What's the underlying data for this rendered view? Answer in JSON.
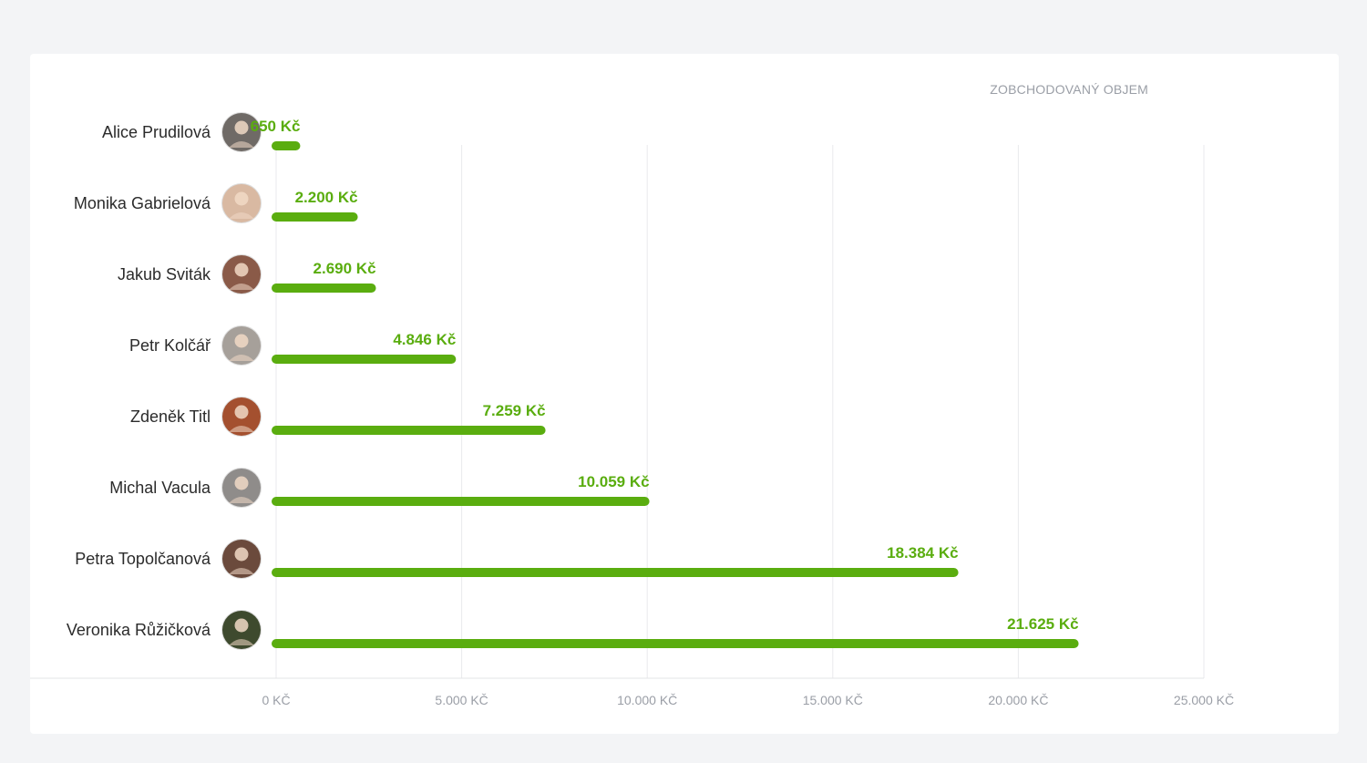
{
  "chart_data": {
    "type": "bar",
    "orientation": "horizontal",
    "series_title": "ZOBCHODOVANÝ OBJEM",
    "categories": [
      "Alice Prudilová",
      "Monika Gabrielová",
      "Jakub Sviták",
      "Petr Kolčář",
      "Zdeněk Titl",
      "Michal Vacula",
      "Petra Topolčanová",
      "Veronika Růžičková"
    ],
    "values": [
      650,
      2200,
      2690,
      4846,
      7259,
      10059,
      18384,
      21625
    ],
    "value_labels": [
      "650 Kč",
      "2.200 Kč",
      "2.690 Kč",
      "4.846 Kč",
      "7.259 Kč",
      "10.059 Kč",
      "18.384 Kč",
      "21.625 Kč"
    ],
    "xlim": [
      0,
      25000
    ],
    "xticks": [
      0,
      5000,
      10000,
      15000,
      20000,
      25000
    ],
    "xtick_labels": [
      "0 KČ",
      "5.000 KČ",
      "10.000 KČ",
      "15.000 KČ",
      "20.000 KČ",
      "25.000 KČ"
    ],
    "avatar_colors": [
      "#6f6a66",
      "#d9b9a2",
      "#8a5a48",
      "#a6a09a",
      "#a4502f",
      "#8f8c8a",
      "#6b4a3c",
      "#3e4a2e"
    ],
    "grid": true,
    "bar_color": "#5aad0f"
  }
}
